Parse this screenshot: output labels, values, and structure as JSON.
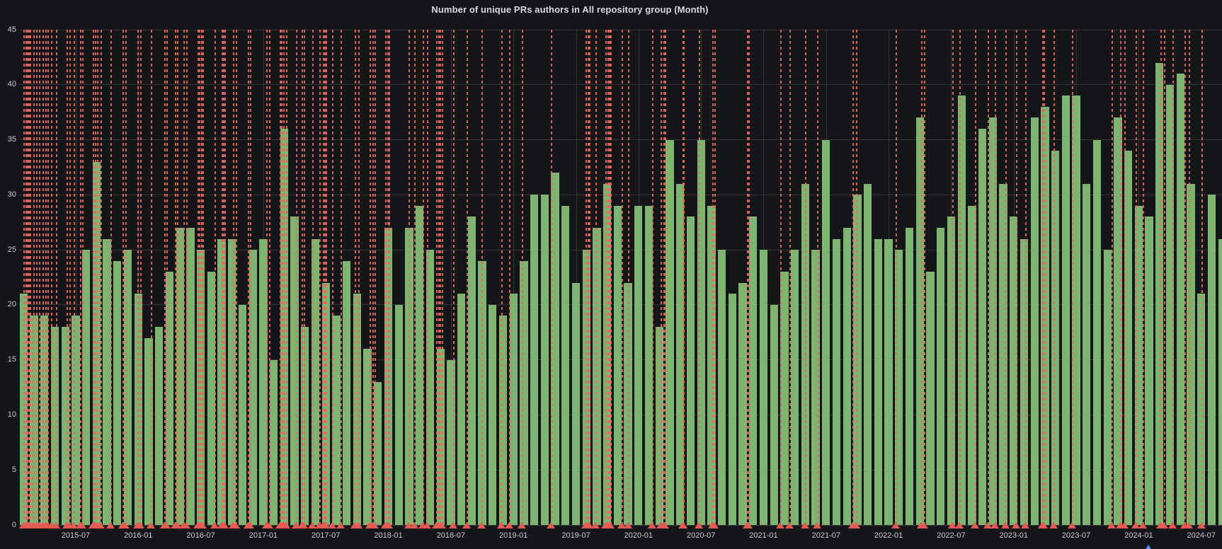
{
  "panel": {
    "title": "Number of unique PRs authors in All repository group (Month)"
  },
  "colors": {
    "panel_bg": "#141619",
    "bar": "#7db46f",
    "annotation_line": "#e8695f",
    "annotation_marker": "#e55a52",
    "blue_marker": "#5794f2",
    "grid": "rgba(255,255,255,0.13)",
    "axis_text": "#c8c9ca",
    "title_text": "#d8d9da"
  },
  "chart_data": {
    "type": "bar",
    "title": "Number of unique PRs authors in All repository group (Month)",
    "xlabel": "",
    "ylabel": "",
    "ylim": [
      0,
      45
    ],
    "grid": true,
    "legend_position": "none",
    "y_ticks": [
      45,
      40,
      35,
      30,
      25,
      20,
      15,
      10,
      5,
      0
    ],
    "categories": [
      "2015-02",
      "2015-03",
      "2015-04",
      "2015-05",
      "2015-06",
      "2015-07",
      "2015-08",
      "2015-09",
      "2015-10",
      "2015-11",
      "2015-12",
      "2016-01",
      "2016-02",
      "2016-03",
      "2016-04",
      "2016-05",
      "2016-06",
      "2016-07",
      "2016-08",
      "2016-09",
      "2016-10",
      "2016-11",
      "2016-12",
      "2017-01",
      "2017-02",
      "2017-03",
      "2017-04",
      "2017-05",
      "2017-06",
      "2017-07",
      "2017-08",
      "2017-09",
      "2017-10",
      "2017-11",
      "2017-12",
      "2018-01",
      "2018-02",
      "2018-03",
      "2018-04",
      "2018-05",
      "2018-06",
      "2018-07",
      "2018-08",
      "2018-09",
      "2018-10",
      "2018-11",
      "2018-12",
      "2019-01",
      "2019-02",
      "2019-03",
      "2019-04",
      "2019-05",
      "2019-06",
      "2019-07",
      "2019-08",
      "2019-09",
      "2019-10",
      "2019-11",
      "2019-12",
      "2020-01",
      "2020-02",
      "2020-03",
      "2020-04",
      "2020-05",
      "2020-06",
      "2020-07",
      "2020-08",
      "2020-09",
      "2020-10",
      "2020-11",
      "2020-12",
      "2021-01",
      "2021-02",
      "2021-03",
      "2021-04",
      "2021-05",
      "2021-06",
      "2021-07",
      "2021-08",
      "2021-09",
      "2021-10",
      "2021-11",
      "2021-12",
      "2022-01",
      "2022-02",
      "2022-03",
      "2022-04",
      "2022-05",
      "2022-06",
      "2022-07",
      "2022-08",
      "2022-09",
      "2022-10",
      "2022-11",
      "2022-12",
      "2023-01",
      "2023-02",
      "2023-03",
      "2023-04",
      "2023-05",
      "2023-06",
      "2023-07",
      "2023-08",
      "2023-09",
      "2023-10",
      "2023-11",
      "2023-12",
      "2024-01",
      "2024-02",
      "2024-03",
      "2024-04",
      "2024-05",
      "2024-06",
      "2024-07",
      "2024-08",
      "2024-09"
    ],
    "values": [
      21,
      19,
      19,
      18,
      18,
      19,
      25,
      33,
      26,
      24,
      25,
      21,
      17,
      18,
      23,
      27,
      27,
      25,
      23,
      26,
      26,
      20,
      25,
      26,
      15,
      36,
      28,
      18,
      26,
      22,
      19,
      24,
      21,
      16,
      13,
      27,
      20,
      27,
      29,
      25,
      16,
      15,
      21,
      28,
      24,
      20,
      19,
      21,
      24,
      30,
      30,
      32,
      29,
      22,
      25,
      27,
      31,
      29,
      22,
      29,
      29,
      18,
      35,
      31,
      28,
      35,
      29,
      25,
      21,
      22,
      28,
      25,
      20,
      23,
      25,
      31,
      25,
      35,
      26,
      27,
      30,
      31,
      26,
      26,
      25,
      27,
      37,
      23,
      27,
      28,
      39,
      29,
      36,
      37,
      31,
      28,
      26,
      37,
      38,
      34,
      39,
      39,
      31,
      35,
      25,
      37,
      34,
      29,
      28,
      42,
      40,
      41,
      31,
      21,
      30,
      26
    ],
    "x_tick_labels": [
      {
        "label": "2015-07",
        "month_index": 5
      },
      {
        "label": "2016-01",
        "month_index": 11
      },
      {
        "label": "2016-07",
        "month_index": 17
      },
      {
        "label": "2017-01",
        "month_index": 23
      },
      {
        "label": "2017-07",
        "month_index": 29
      },
      {
        "label": "2018-01",
        "month_index": 35
      },
      {
        "label": "2018-07",
        "month_index": 41
      },
      {
        "label": "2019-01",
        "month_index": 47
      },
      {
        "label": "2019-07",
        "month_index": 53
      },
      {
        "label": "2020-01",
        "month_index": 59
      },
      {
        "label": "2020-07",
        "month_index": 65
      },
      {
        "label": "2021-01",
        "month_index": 71
      },
      {
        "label": "2021-07",
        "month_index": 77
      },
      {
        "label": "2022-01",
        "month_index": 83
      },
      {
        "label": "2022-07",
        "month_index": 89
      },
      {
        "label": "2023-01",
        "month_index": 95
      },
      {
        "label": "2023-07",
        "month_index": 101
      },
      {
        "label": "2024-01",
        "month_index": 107
      },
      {
        "label": "2024-07",
        "month_index": 113
      }
    ],
    "annotations": {
      "style": "red-dashed-vertical-lines-with-triangle-markers",
      "line_positions_month_units": [
        0.5,
        0.7,
        0.8,
        0.95,
        1.1,
        1.4,
        1.7,
        2.0,
        2.3,
        2.6,
        2.8,
        3.1,
        3.6,
        4.6,
        4.9,
        5.3,
        5.9,
        6.1,
        7.1,
        7.35,
        7.55,
        7.9,
        8.8,
        10.0,
        10.25,
        11.4,
        11.7,
        12.7,
        14.0,
        14.2,
        15.0,
        15.25,
        15.85,
        16.1,
        17.2,
        17.35,
        17.5,
        17.65,
        18.8,
        19.5,
        19.62,
        19.75,
        20.6,
        20.85,
        22.0,
        22.2,
        23.8,
        24.05,
        25.1,
        25.22,
        25.42,
        25.7,
        26.65,
        27.2,
        27.4,
        28.2,
        28.9,
        29.2,
        29.32,
        29.45,
        30.1,
        30.9,
        32.3,
        32.6,
        33.7,
        34.0,
        34.2,
        35.2,
        35.4,
        35.55,
        37.4,
        38.0,
        38.8,
        39.2,
        40.1,
        40.3,
        40.45,
        40.6,
        41.7,
        43.0,
        44.4,
        46.3,
        47.1,
        48.3,
        51.1,
        54.4,
        54.6,
        54.75,
        55.4,
        56.3,
        56.5,
        56.65,
        56.8,
        57.9,
        58.5,
        60.8,
        61.6,
        61.9,
        62.05,
        63.7,
        63.82,
        65.3,
        66.6,
        66.75,
        69.9,
        70.05,
        73.1,
        74.0,
        75.5,
        76.6,
        80.0,
        80.4,
        84.2,
        86.6,
        86.9,
        89.6,
        90.3,
        91.8,
        93.0,
        93.7,
        94.7,
        95.7,
        96.6,
        98.2,
        98.4,
        99.3,
        101.1,
        104.9,
        105.7,
        106.1,
        107.2,
        107.9,
        109.6,
        109.9,
        110.7,
        111.9,
        112.3,
        113.5
      ],
      "blue_marker_month_unit": 108.4
    }
  }
}
